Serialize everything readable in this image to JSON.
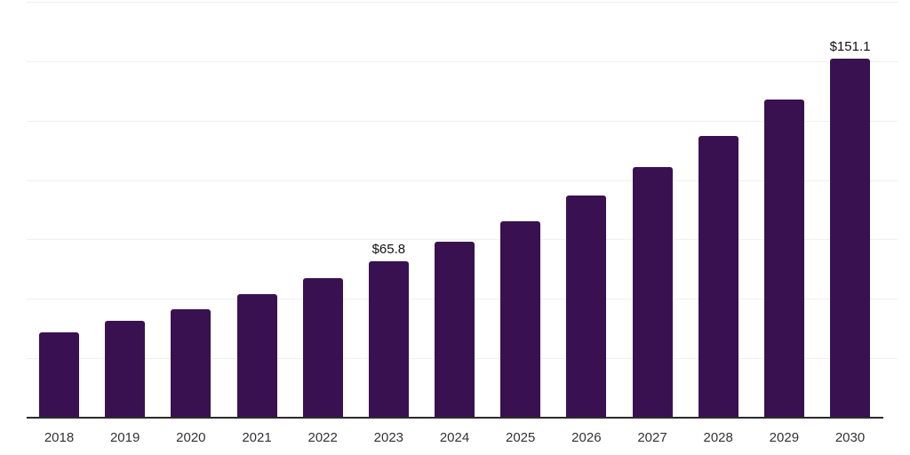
{
  "chart_data": {
    "type": "bar",
    "title": "",
    "categories": [
      "2018",
      "2019",
      "2020",
      "2021",
      "2022",
      "2023",
      "2024",
      "2025",
      "2026",
      "2027",
      "2028",
      "2029",
      "2030"
    ],
    "values": [
      35.8,
      40.7,
      45.5,
      51.9,
      58.6,
      65.8,
      73.9,
      82.8,
      93.3,
      105.6,
      118.7,
      134.0,
      151.1
    ],
    "value_labels": [
      null,
      null,
      null,
      null,
      null,
      "$65.8",
      null,
      null,
      null,
      null,
      null,
      null,
      "$151.1"
    ],
    "xlabel": "",
    "ylabel": "",
    "ylim": [
      0,
      175
    ],
    "gridline_step": 25,
    "grid": true,
    "legend_position": "none",
    "y_axis_tick_labels_visible": false,
    "colors": {
      "bar": "#391150",
      "gridline": "#efefef",
      "axis_line": "#2b2b2b",
      "tick_label": "#333333",
      "value_label": "#111111",
      "background": "#ffffff"
    }
  }
}
